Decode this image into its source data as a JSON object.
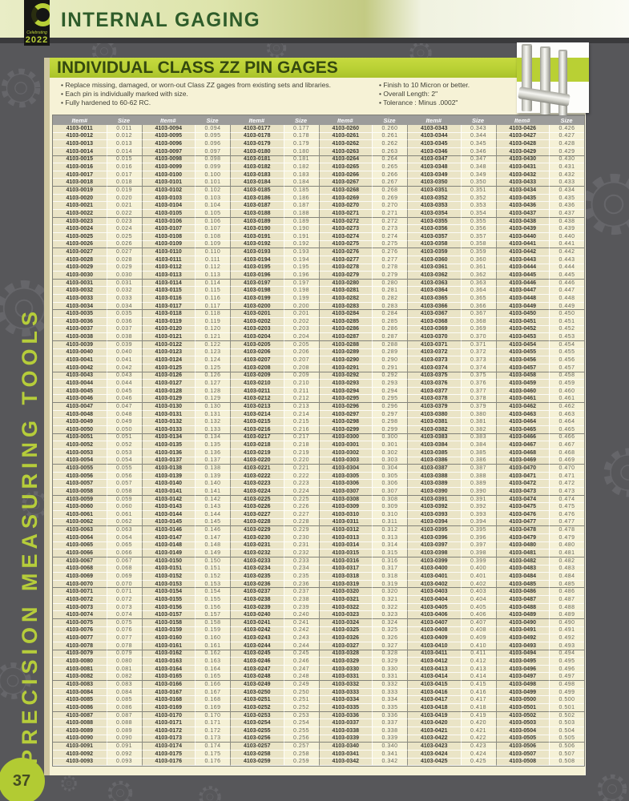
{
  "header": {
    "badge": {
      "celebrating": "Celebrating",
      "year": "2022"
    },
    "title": "INTERNAL GAGING"
  },
  "product": {
    "banner_title": "INDIVIDUAL CLASS ZZ PIN GAGES",
    "bullets_left": [
      "Replace missing, damaged, or worn-out Class ZZ gages from existing sets and libraries.",
      "Each pin is individually marked with size.",
      "Fully hardened to 60-62 RC."
    ],
    "bullets_right": [
      "Finish to 10 Micron or better.",
      "Overall Length: 2\"",
      "Tolerance : Minus .0002\""
    ]
  },
  "table": {
    "col_headers": [
      "Item#",
      "Size"
    ],
    "item_prefix": "4103-",
    "item_digits": 4,
    "size_decimals": 3,
    "size_divisor": 1000,
    "row_count": 83,
    "row_group_size": 4,
    "columns": [
      {
        "first_item": 11,
        "last_item": 93,
        "first_size": "0.011",
        "last_size": "0.093"
      },
      {
        "first_item": 94,
        "last_item": 176,
        "first_size": "0.094",
        "last_size": "0.176"
      },
      {
        "first_item": 177,
        "last_item": 259,
        "first_size": "0.177",
        "last_size": "0.259"
      },
      {
        "first_item": 260,
        "last_item": 342,
        "first_size": "0.260",
        "last_size": "0.342"
      },
      {
        "first_item": 343,
        "last_item": 425,
        "first_size": "0.343",
        "last_size": "0.425"
      },
      {
        "first_item": 426,
        "last_item": 508,
        "first_size": "0.426",
        "last_size": "0.508"
      }
    ]
  },
  "sidebar": {
    "vertical_label": "PRECISION MEASURING TOOLS"
  },
  "footer": {
    "page_number": "37"
  },
  "colors": {
    "accent_lime": "#b9d034",
    "title_green": "#2e5c2a",
    "table_header_gray": "#9c9c9a",
    "page_cream": "#f6f2d6",
    "background_gray": "#57575a"
  }
}
